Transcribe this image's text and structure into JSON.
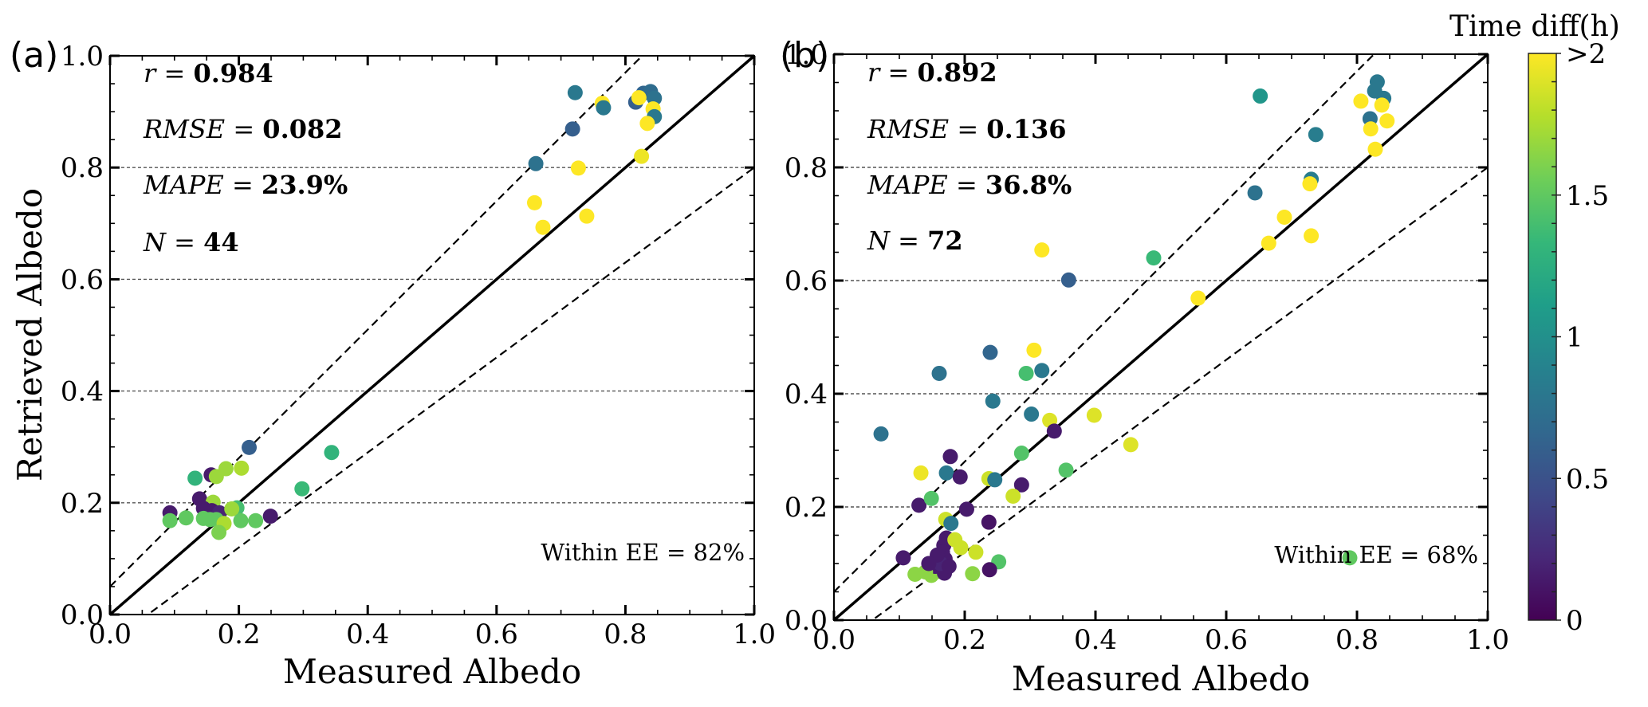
{
  "figure": {
    "colorbar": {
      "title": "Time diff(h)",
      "range": [
        0,
        2
      ],
      "ticks": [
        {
          "value": 0,
          "label": "0"
        },
        {
          "value": 0.5,
          "label": "0.5"
        },
        {
          "value": 1,
          "label": "1"
        },
        {
          "value": 1.5,
          "label": "1.5"
        },
        {
          "value": 2,
          "label": ">2"
        }
      ],
      "colormap": "viridis",
      "colormap_stops": [
        "#440154",
        "#482878",
        "#3e4a89",
        "#31688e",
        "#26828e",
        "#1f9e89",
        "#35b779",
        "#6ece58",
        "#b5de2b",
        "#fde725"
      ]
    }
  },
  "chart_data": [
    {
      "type": "scatter",
      "panel_label": "(a)",
      "title": "",
      "xlabel": "Measured Albedo",
      "ylabel": "Retrieved Albedo",
      "xlim": [
        0,
        1
      ],
      "ylim": [
        0,
        1
      ],
      "xticks": [
        "0.0",
        "0.2",
        "0.4",
        "0.6",
        "0.8",
        "1.0"
      ],
      "yticks": [
        "0.0",
        "0.2",
        "0.4",
        "0.6",
        "0.8",
        "1.0"
      ],
      "grid": "horizontal dashed",
      "reference_lines": [
        {
          "name": "1:1 line",
          "slope": 1,
          "intercept": 0,
          "style": "solid"
        },
        {
          "name": "EE upper",
          "slope": 1.15,
          "intercept": 0.05,
          "style": "dashed"
        },
        {
          "name": "EE lower",
          "slope": 0.85,
          "intercept": -0.05,
          "style": "dashed"
        }
      ],
      "stats": [
        {
          "name": "r",
          "value": "0.984"
        },
        {
          "name": "RMSE",
          "value": "0.082"
        },
        {
          "name": "MAPE",
          "value": "23.9%"
        },
        {
          "name": "N",
          "value": "44"
        }
      ],
      "annotation": "Within EE = 82%",
      "color_variable": "Time diff(h)",
      "points": [
        [
          0.216,
          0.299,
          0.6
        ],
        [
          0.132,
          0.244,
          1.3
        ],
        [
          0.157,
          0.25,
          0.15
        ],
        [
          0.165,
          0.247,
          1.7
        ],
        [
          0.18,
          0.261,
          1.7
        ],
        [
          0.204,
          0.262,
          1.75
        ],
        [
          0.139,
          0.207,
          0.15
        ],
        [
          0.16,
          0.201,
          1.7
        ],
        [
          0.145,
          0.19,
          0.15
        ],
        [
          0.158,
          0.186,
          0.15
        ],
        [
          0.17,
          0.182,
          0.2
        ],
        [
          0.093,
          0.182,
          0.15
        ],
        [
          0.093,
          0.168,
          1.5
        ],
        [
          0.118,
          0.173,
          1.5
        ],
        [
          0.145,
          0.172,
          1.5
        ],
        [
          0.155,
          0.17,
          1.5
        ],
        [
          0.165,
          0.17,
          1.5
        ],
        [
          0.197,
          0.191,
          1.4
        ],
        [
          0.189,
          0.189,
          1.7
        ],
        [
          0.177,
          0.163,
          1.75
        ],
        [
          0.169,
          0.147,
          1.6
        ],
        [
          0.203,
          0.168,
          1.5
        ],
        [
          0.226,
          0.168,
          1.5
        ],
        [
          0.249,
          0.176,
          0.15
        ],
        [
          0.298,
          0.225,
          1.35
        ],
        [
          0.344,
          0.29,
          1.3
        ],
        [
          0.722,
          0.934,
          0.8
        ],
        [
          0.764,
          0.915,
          2
        ],
        [
          0.766,
          0.907,
          0.8
        ],
        [
          0.718,
          0.869,
          0.6
        ],
        [
          0.661,
          0.807,
          0.75
        ],
        [
          0.727,
          0.799,
          2
        ],
        [
          0.659,
          0.737,
          2
        ],
        [
          0.672,
          0.693,
          2
        ],
        [
          0.74,
          0.713,
          2
        ],
        [
          0.825,
          0.82,
          1.95
        ],
        [
          0.816,
          0.917,
          0.6
        ],
        [
          0.828,
          0.933,
          0.65
        ],
        [
          0.839,
          0.936,
          0.7
        ],
        [
          0.845,
          0.924,
          0.75
        ],
        [
          0.821,
          0.925,
          2
        ],
        [
          0.843,
          0.905,
          2
        ],
        [
          0.845,
          0.891,
          0.8
        ],
        [
          0.834,
          0.879,
          2
        ]
      ]
    },
    {
      "type": "scatter",
      "panel_label": "(b)",
      "title": "",
      "xlabel": "Measured Albedo",
      "ylabel": "",
      "xlim": [
        0,
        1
      ],
      "ylim": [
        0,
        1
      ],
      "xticks": [
        "0.0",
        "0.2",
        "0.4",
        "0.6",
        "0.8",
        "1.0"
      ],
      "yticks": [
        "0.0",
        "0.2",
        "0.4",
        "0.6",
        "0.8",
        "1.0"
      ],
      "grid": "horizontal dashed",
      "reference_lines": [
        {
          "name": "1:1 line",
          "slope": 1,
          "intercept": 0,
          "style": "solid"
        },
        {
          "name": "EE upper",
          "slope": 1.15,
          "intercept": 0.05,
          "style": "dashed"
        },
        {
          "name": "EE lower",
          "slope": 0.85,
          "intercept": -0.05,
          "style": "dashed"
        }
      ],
      "stats": [
        {
          "name": "r",
          "value": "0.892"
        },
        {
          "name": "RMSE",
          "value": "0.136"
        },
        {
          "name": "MAPE",
          "value": "36.8%"
        },
        {
          "name": "N",
          "value": "72"
        }
      ],
      "annotation": "Within EE = 68%",
      "color_variable": "Time diff(h)",
      "points": [
        [
          0.831,
          0.951,
          0.8
        ],
        [
          0.827,
          0.935,
          0.8
        ],
        [
          0.841,
          0.922,
          0.8
        ],
        [
          0.806,
          0.917,
          2
        ],
        [
          0.838,
          0.91,
          2
        ],
        [
          0.82,
          0.886,
          0.75
        ],
        [
          0.846,
          0.882,
          2
        ],
        [
          0.821,
          0.868,
          2
        ],
        [
          0.828,
          0.832,
          2
        ],
        [
          0.652,
          0.926,
          1.05
        ],
        [
          0.737,
          0.858,
          0.85
        ],
        [
          0.73,
          0.779,
          0.85
        ],
        [
          0.728,
          0.771,
          2
        ],
        [
          0.644,
          0.755,
          0.75
        ],
        [
          0.689,
          0.712,
          2
        ],
        [
          0.73,
          0.679,
          2
        ],
        [
          0.665,
          0.666,
          2
        ],
        [
          0.489,
          0.64,
          1.35
        ],
        [
          0.557,
          0.569,
          2
        ],
        [
          0.318,
          0.654,
          2
        ],
        [
          0.359,
          0.601,
          0.6
        ],
        [
          0.239,
          0.473,
          0.65
        ],
        [
          0.306,
          0.477,
          2
        ],
        [
          0.161,
          0.436,
          0.75
        ],
        [
          0.294,
          0.436,
          1.4
        ],
        [
          0.318,
          0.441,
          0.8
        ],
        [
          0.243,
          0.387,
          0.8
        ],
        [
          0.302,
          0.364,
          0.8
        ],
        [
          0.33,
          0.353,
          1.9
        ],
        [
          0.398,
          0.362,
          1.9
        ],
        [
          0.337,
          0.334,
          0.15
        ],
        [
          0.072,
          0.329,
          0.75
        ],
        [
          0.287,
          0.295,
          1.45
        ],
        [
          0.178,
          0.289,
          0.15
        ],
        [
          0.355,
          0.265,
          1.45
        ],
        [
          0.133,
          0.26,
          1.95
        ],
        [
          0.454,
          0.31,
          1.9
        ],
        [
          0.172,
          0.26,
          0.8
        ],
        [
          0.193,
          0.253,
          0.15
        ],
        [
          0.237,
          0.25,
          1.85
        ],
        [
          0.246,
          0.248,
          0.8
        ],
        [
          0.287,
          0.239,
          0.15
        ],
        [
          0.274,
          0.219,
          1.85
        ],
        [
          0.13,
          0.203,
          0.15
        ],
        [
          0.149,
          0.215,
          1.45
        ],
        [
          0.203,
          0.196,
          0.15
        ],
        [
          0.171,
          0.178,
          1.85
        ],
        [
          0.179,
          0.171,
          0.8
        ],
        [
          0.237,
          0.173,
          0.1
        ],
        [
          0.106,
          0.11,
          0.15
        ],
        [
          0.172,
          0.145,
          0.15
        ],
        [
          0.168,
          0.132,
          0.15
        ],
        [
          0.166,
          0.12,
          0.15
        ],
        [
          0.17,
          0.108,
          0.15
        ],
        [
          0.185,
          0.142,
          1.85
        ],
        [
          0.194,
          0.128,
          1.85
        ],
        [
          0.217,
          0.12,
          1.85
        ],
        [
          0.252,
          0.103,
          1.45
        ],
        [
          0.238,
          0.089,
          0.1
        ],
        [
          0.212,
          0.082,
          1.65
        ],
        [
          0.124,
          0.081,
          1.65
        ],
        [
          0.145,
          0.091,
          0.15
        ],
        [
          0.149,
          0.079,
          1.65
        ],
        [
          0.159,
          0.086,
          1.65
        ],
        [
          0.169,
          0.083,
          0.15
        ],
        [
          0.155,
          0.095,
          0.15
        ],
        [
          0.14,
          0.085,
          1.65
        ],
        [
          0.163,
          0.1,
          0.2
        ],
        [
          0.176,
          0.095,
          0.15
        ],
        [
          0.789,
          0.11,
          1.5
        ],
        [
          0.158,
          0.115,
          0.15
        ],
        [
          0.145,
          0.1,
          0.15
        ]
      ]
    }
  ]
}
